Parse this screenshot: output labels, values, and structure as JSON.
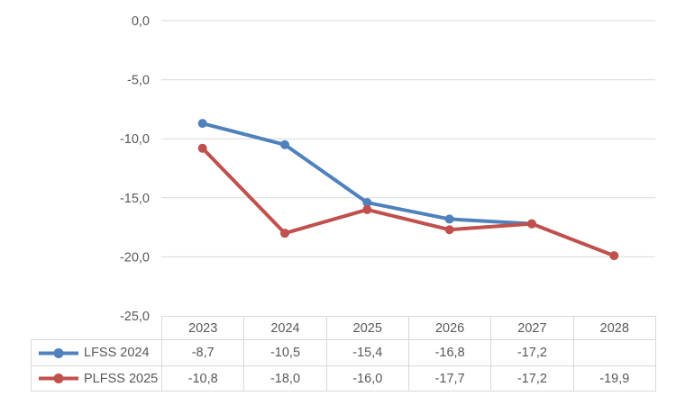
{
  "chart_data": {
    "type": "line",
    "title": "",
    "xlabel": "",
    "ylabel": "",
    "categories": [
      "2023",
      "2024",
      "2025",
      "2026",
      "2027",
      "2028"
    ],
    "series": [
      {
        "name": "LFSS 2024",
        "color": "#4F81BD",
        "marker": "circle",
        "values": [
          -8.7,
          -10.5,
          -15.4,
          -16.8,
          -17.2,
          null
        ]
      },
      {
        "name": "PLFSS 2025",
        "color": "#C0504D",
        "marker": "circle",
        "values": [
          -10.8,
          -18.0,
          -16.0,
          -17.7,
          -17.2,
          -19.9
        ]
      }
    ],
    "ylim": [
      -25,
      0
    ],
    "yticks": [
      0,
      -5,
      -10,
      -15,
      -20,
      -25
    ],
    "ytick_labels": [
      "0,0",
      "-5,0",
      "-10,0",
      "-15,0",
      "-20,0",
      "-25,0"
    ],
    "grid": "horizontal",
    "legend_position": "data-table-left",
    "data_table_shown": true,
    "number_format": "french-comma-decimal"
  },
  "data_table": {
    "columns": [
      "2023",
      "2024",
      "2025",
      "2026",
      "2027",
      "2028"
    ],
    "rows": [
      {
        "label": "LFSS 2024",
        "values": [
          "-8,7",
          "-10,5",
          "-15,4",
          "-16,8",
          "-17,2",
          ""
        ]
      },
      {
        "label": "PLFSS 2025",
        "values": [
          "-10,8",
          "-18,0",
          "-16,0",
          "-17,7",
          "-17,2",
          "-19,9"
        ]
      }
    ]
  },
  "colors": {
    "series_1": "#4F81BD",
    "series_2": "#C0504D",
    "gridline": "#D9D9D9",
    "table_border": "#D9D9D9",
    "text": "#595959",
    "background": "#FFFFFF"
  }
}
